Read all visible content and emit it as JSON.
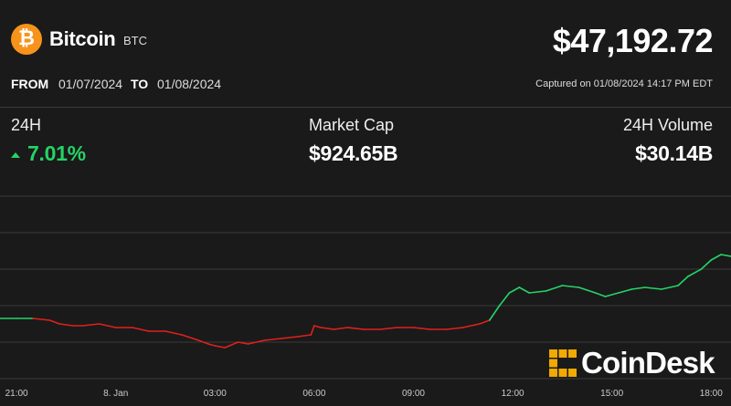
{
  "coin": {
    "name": "Bitcoin",
    "ticker": "BTC",
    "icon": "bitcoin-icon",
    "icon_glyph": "₿",
    "icon_color": "#f7931a"
  },
  "price": "$47,192.72",
  "range": {
    "from_label": "FROM",
    "from": "01/07/2024",
    "to_label": "TO",
    "to": "01/08/2024"
  },
  "captured": "Captured on 01/08/2024 14:17 PM EDT",
  "stats": {
    "change_label": "24H",
    "change_value": "7.01%",
    "change_direction": "up",
    "market_cap_label": "Market Cap",
    "market_cap_value": "$924.65B",
    "volume_label": "24H Volume",
    "volume_value": "$30.14B"
  },
  "watermark": "CoinDesk",
  "colors": {
    "up": "#25d366",
    "down": "#e0201c",
    "background": "#1a1a1a",
    "gridline": "#3a3a3a"
  },
  "chart_data": {
    "type": "line",
    "x_tick_labels": [
      "21:00",
      "8. Jan",
      "03:00",
      "06:00",
      "09:00",
      "12:00",
      "15:00",
      "18:00"
    ],
    "x_tick_hours": [
      21,
      24,
      27,
      30,
      33,
      36,
      39,
      42
    ],
    "x_range_hours": [
      20.5,
      42.6
    ],
    "y_gridline_count": 6,
    "grid": "horizontal",
    "series": [
      {
        "x_hours": [
          20.5,
          21.0,
          21.5,
          22.0,
          22.3,
          22.7,
          23.0,
          23.5,
          24.0,
          24.5,
          25.0,
          25.5,
          26.0,
          26.5,
          26.8,
          27.0,
          27.3,
          27.7,
          28.0,
          28.5,
          29.0,
          29.5,
          29.9,
          30.0,
          30.2,
          30.6,
          31.0,
          31.5,
          32.0,
          32.5,
          33.0,
          33.5,
          34.0,
          34.5,
          35.0,
          35.3,
          35.6,
          35.9,
          36.2,
          36.5,
          37.0,
          37.5,
          38.0,
          38.5,
          38.8,
          39.2,
          39.6,
          40.0,
          40.5,
          41.0,
          41.3,
          41.7,
          42.0,
          42.3,
          42.6
        ],
        "values": [
          0.33,
          0.33,
          0.33,
          0.32,
          0.3,
          0.29,
          0.29,
          0.3,
          0.28,
          0.28,
          0.26,
          0.26,
          0.24,
          0.21,
          0.19,
          0.18,
          0.17,
          0.2,
          0.19,
          0.21,
          0.22,
          0.23,
          0.24,
          0.29,
          0.28,
          0.27,
          0.28,
          0.27,
          0.27,
          0.28,
          0.28,
          0.27,
          0.27,
          0.28,
          0.3,
          0.32,
          0.4,
          0.47,
          0.5,
          0.47,
          0.48,
          0.51,
          0.5,
          0.47,
          0.45,
          0.47,
          0.49,
          0.5,
          0.49,
          0.51,
          0.56,
          0.6,
          0.65,
          0.68,
          0.67
        ]
      }
    ]
  }
}
